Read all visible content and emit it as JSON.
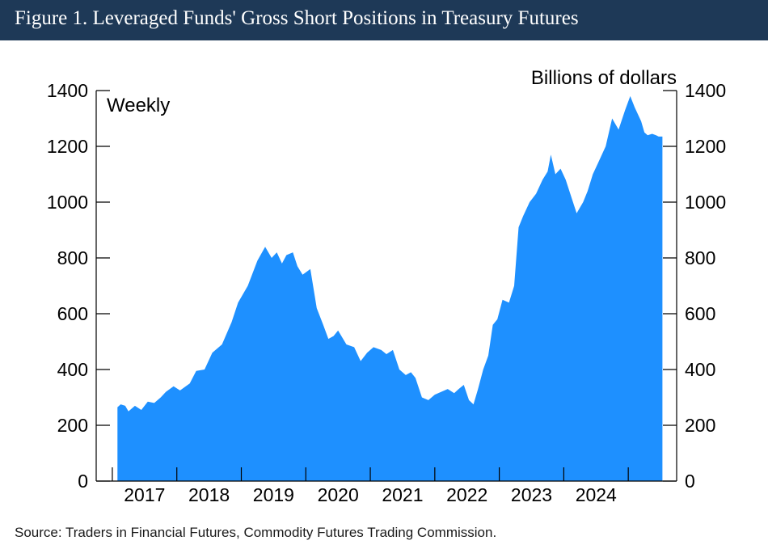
{
  "title": "Figure 1. Leveraged Funds' Gross Short Positions in Treasury Futures",
  "source": "Source: Traders in Financial Futures, Commodity Futures Trading Commission.",
  "colors": {
    "title_bg": "#1e3957",
    "area": "#1e90ff"
  },
  "chart_data": {
    "type": "area",
    "frequency_label": "Weekly",
    "units_label": "Billions of dollars",
    "ylim": [
      0,
      1400
    ],
    "yticks": [
      0,
      200,
      400,
      600,
      800,
      1000,
      1200,
      1400
    ],
    "xlim": [
      2016.0,
      2025.0
    ],
    "xtick_labels": [
      "2017",
      "2018",
      "2019",
      "2020",
      "2021",
      "2022",
      "2023",
      "2024"
    ],
    "xtick_label_positions": [
      2016.75,
      2017.75,
      2018.75,
      2019.75,
      2020.75,
      2021.75,
      2022.75,
      2023.75
    ],
    "xtick_marks": [
      2016.25,
      2017.25,
      2018.25,
      2019.25,
      2020.25,
      2021.25,
      2022.25,
      2023.25,
      2024.25
    ],
    "series": [
      {
        "name": "Leveraged funds gross short positions",
        "x": [
          2016.33,
          2016.38,
          2016.45,
          2016.5,
          2016.6,
          2016.7,
          2016.8,
          2016.9,
          2017.0,
          2017.08,
          2017.2,
          2017.3,
          2017.45,
          2017.55,
          2017.68,
          2017.8,
          2017.95,
          2018.1,
          2018.2,
          2018.35,
          2018.5,
          2018.62,
          2018.72,
          2018.8,
          2018.88,
          2018.95,
          2019.05,
          2019.12,
          2019.2,
          2019.32,
          2019.42,
          2019.52,
          2019.6,
          2019.68,
          2019.75,
          2019.88,
          2020.0,
          2020.1,
          2020.2,
          2020.3,
          2020.42,
          2020.5,
          2020.6,
          2020.7,
          2020.8,
          2020.88,
          2020.95,
          2021.05,
          2021.15,
          2021.25,
          2021.35,
          2021.45,
          2021.55,
          2021.62,
          2021.7,
          2021.78,
          2021.85,
          2021.92,
          2022.0,
          2022.08,
          2022.15,
          2022.22,
          2022.3,
          2022.4,
          2022.48,
          2022.55,
          2022.62,
          2022.72,
          2022.82,
          2022.92,
          2023.0,
          2023.05,
          2023.12,
          2023.2,
          2023.28,
          2023.35,
          2023.45,
          2023.5,
          2023.55,
          2023.62,
          2023.7,
          2023.78,
          2023.9,
          2024.0,
          2024.1,
          2024.2,
          2024.28,
          2024.35,
          2024.45,
          2024.5,
          2024.55,
          2024.62,
          2024.68,
          2024.72,
          2024.78
        ],
        "values": [
          265,
          275,
          270,
          250,
          270,
          255,
          285,
          280,
          300,
          320,
          340,
          325,
          350,
          395,
          400,
          460,
          490,
          570,
          640,
          700,
          790,
          840,
          800,
          820,
          780,
          810,
          820,
          770,
          740,
          760,
          620,
          560,
          510,
          520,
          540,
          490,
          480,
          430,
          460,
          480,
          470,
          455,
          470,
          400,
          380,
          390,
          370,
          300,
          290,
          310,
          320,
          330,
          315,
          330,
          345,
          290,
          275,
          330,
          400,
          450,
          560,
          580,
          650,
          640,
          700,
          910,
          950,
          1000,
          1030,
          1080,
          1110,
          1170,
          1100,
          1120,
          1080,
          1030,
          960,
          980,
          1000,
          1040,
          1100,
          1140,
          1200,
          1300,
          1260,
          1330,
          1380,
          1340,
          1290,
          1250,
          1240,
          1245,
          1240,
          1235,
          1235
        ]
      }
    ]
  }
}
